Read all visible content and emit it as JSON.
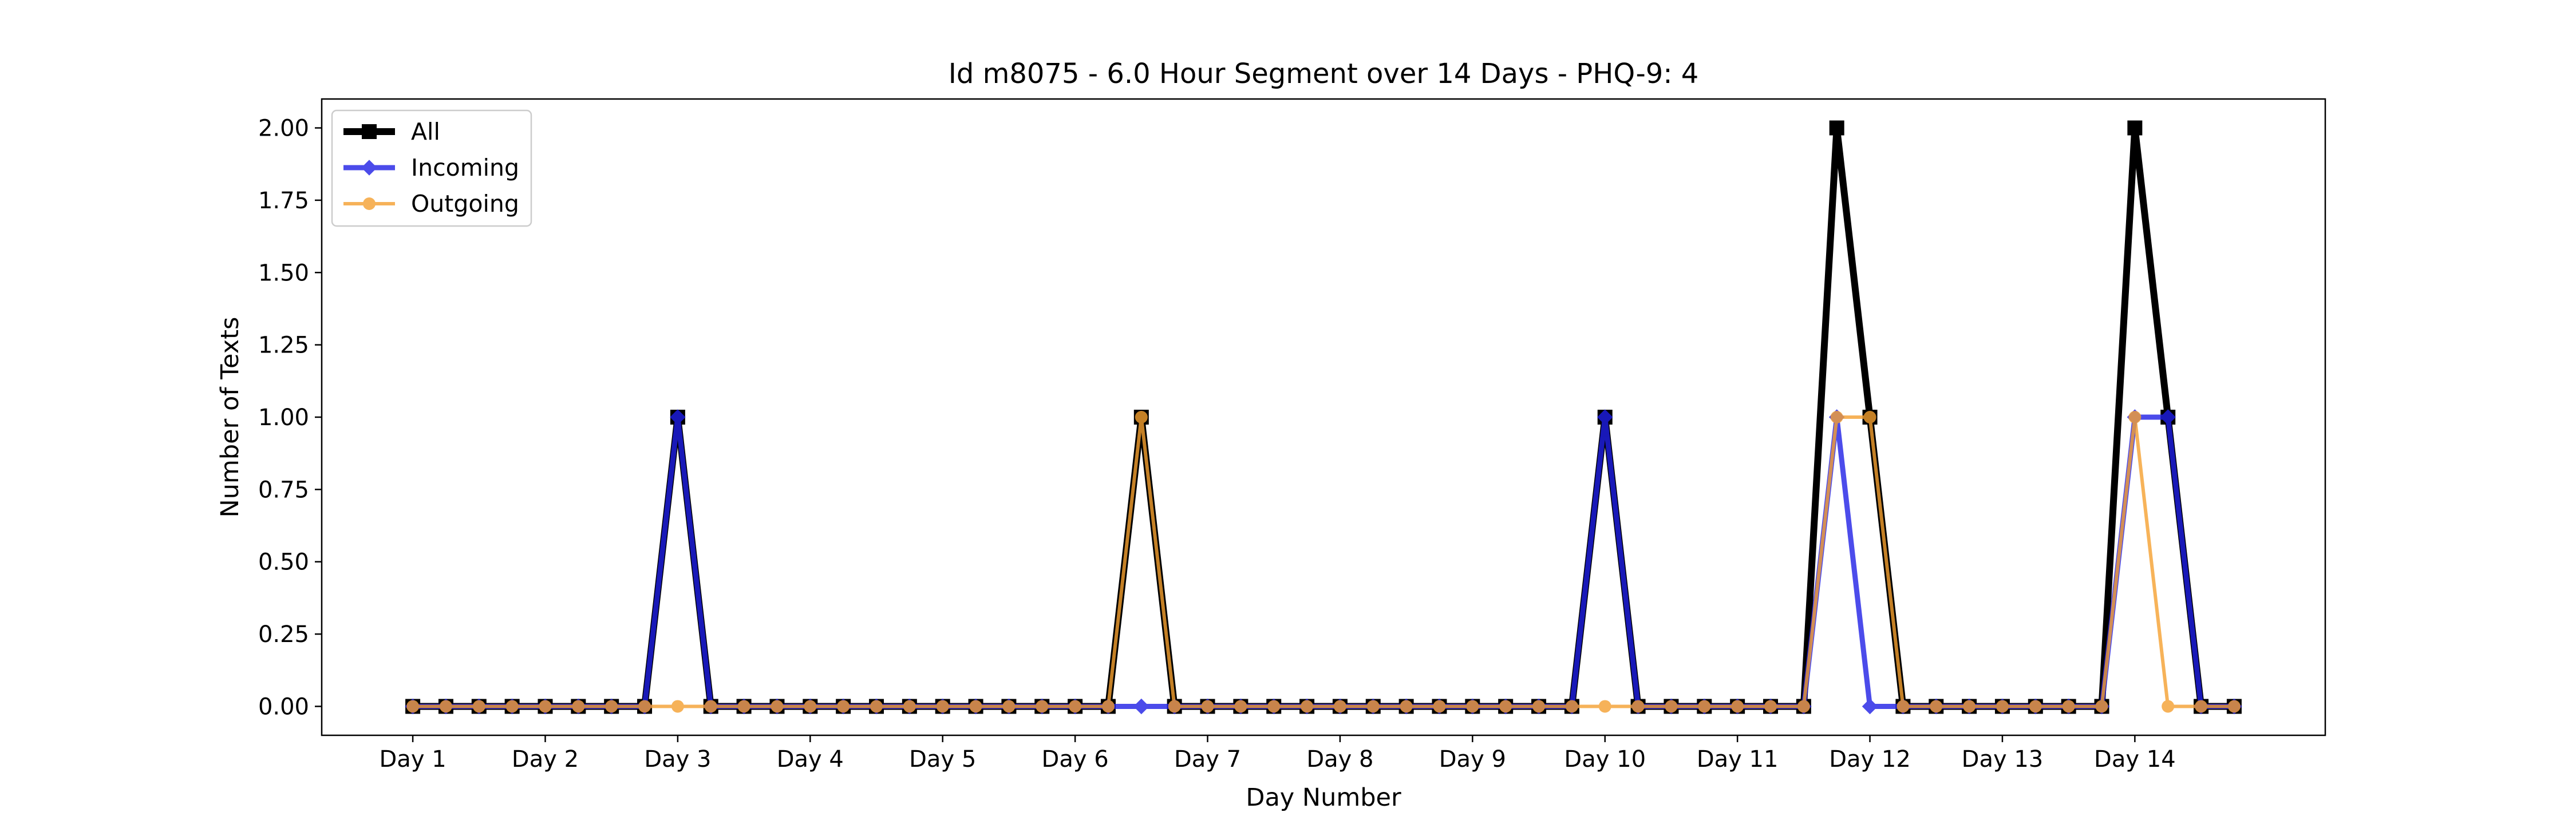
{
  "chart_data": {
    "type": "line",
    "title": "Id m8075 - 6.0 Hour Segment over 14 Days - PHQ-9: 4",
    "xlabel": "Day Number",
    "ylabel": "Number of Texts",
    "x": [
      0,
      1,
      2,
      3,
      4,
      5,
      6,
      7,
      8,
      9,
      10,
      11,
      12,
      13,
      14,
      15,
      16,
      17,
      18,
      19,
      20,
      21,
      22,
      23,
      24,
      25,
      26,
      27,
      28,
      29,
      30,
      31,
      32,
      33,
      34,
      35,
      36,
      37,
      38,
      39,
      40,
      41,
      42,
      43,
      44,
      45,
      46,
      47,
      48,
      49,
      50,
      51,
      52,
      53,
      54,
      55
    ],
    "xticks": [
      {
        "x": 0,
        "label": "Day 1"
      },
      {
        "x": 4,
        "label": "Day 2"
      },
      {
        "x": 8,
        "label": "Day 3"
      },
      {
        "x": 12,
        "label": "Day 4"
      },
      {
        "x": 16,
        "label": "Day 5"
      },
      {
        "x": 20,
        "label": "Day 6"
      },
      {
        "x": 24,
        "label": "Day 7"
      },
      {
        "x": 28,
        "label": "Day 8"
      },
      {
        "x": 32,
        "label": "Day 9"
      },
      {
        "x": 36,
        "label": "Day 10"
      },
      {
        "x": 40,
        "label": "Day 11"
      },
      {
        "x": 44,
        "label": "Day 12"
      },
      {
        "x": 48,
        "label": "Day 13"
      },
      {
        "x": 52,
        "label": "Day 14"
      }
    ],
    "yticks": [
      "0.00",
      "0.25",
      "0.50",
      "0.75",
      "1.00",
      "1.25",
      "1.50",
      "1.75",
      "2.00"
    ],
    "ylim": [
      -0.1,
      2.1
    ],
    "xlim": [
      -2.75,
      57.75
    ],
    "grid": false,
    "legend_position": "upper-left",
    "series": [
      {
        "name": "All",
        "color": "#000000",
        "marker": "square",
        "values": [
          0,
          0,
          0,
          0,
          0,
          0,
          0,
          0,
          1,
          0,
          0,
          0,
          0,
          0,
          0,
          0,
          0,
          0,
          0,
          0,
          0,
          0,
          1,
          0,
          0,
          0,
          0,
          0,
          0,
          0,
          0,
          0,
          0,
          0,
          0,
          0,
          1,
          0,
          0,
          0,
          0,
          0,
          0,
          2,
          1,
          0,
          0,
          0,
          0,
          0,
          0,
          0,
          2,
          1,
          0,
          0
        ]
      },
      {
        "name": "Incoming",
        "color": "#1f1fe6",
        "marker": "diamond",
        "values": [
          0,
          0,
          0,
          0,
          0,
          0,
          0,
          0,
          1,
          0,
          0,
          0,
          0,
          0,
          0,
          0,
          0,
          0,
          0,
          0,
          0,
          0,
          0,
          0,
          0,
          0,
          0,
          0,
          0,
          0,
          0,
          0,
          0,
          0,
          0,
          0,
          1,
          0,
          0,
          0,
          0,
          0,
          0,
          1,
          0,
          0,
          0,
          0,
          0,
          0,
          0,
          0,
          1,
          1,
          0,
          0
        ]
      },
      {
        "name": "Outgoing",
        "color": "#f5a030",
        "marker": "circle",
        "values": [
          0,
          0,
          0,
          0,
          0,
          0,
          0,
          0,
          0,
          0,
          0,
          0,
          0,
          0,
          0,
          0,
          0,
          0,
          0,
          0,
          0,
          0,
          1,
          0,
          0,
          0,
          0,
          0,
          0,
          0,
          0,
          0,
          0,
          0,
          0,
          0,
          0,
          0,
          0,
          0,
          0,
          0,
          0,
          1,
          1,
          0,
          0,
          0,
          0,
          0,
          0,
          0,
          1,
          0,
          0,
          0
        ]
      }
    ]
  }
}
